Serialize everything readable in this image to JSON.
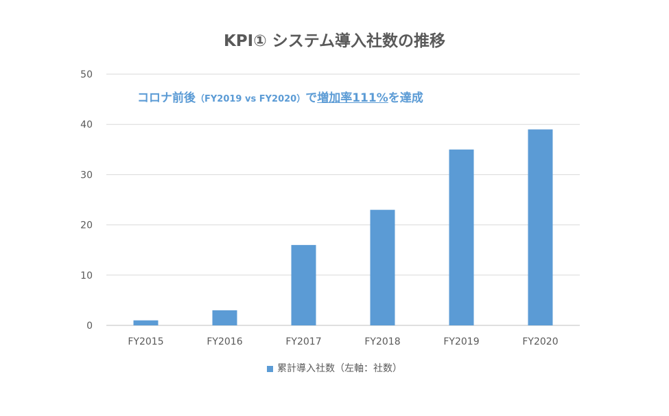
{
  "chart_data": {
    "type": "bar",
    "title": "KPI① システム導入社数の推移",
    "categories": [
      "FY2015",
      "FY2016",
      "FY2017",
      "FY2018",
      "FY2019",
      "FY2020"
    ],
    "series": [
      {
        "name": "累計導入社数（左軸：社数）",
        "values": [
          1,
          3,
          16,
          23,
          35,
          39
        ],
        "color": "#5b9bd5"
      }
    ],
    "ylim": [
      0,
      50
    ],
    "yticks": [
      0,
      10,
      20,
      30,
      40,
      50
    ],
    "grid": true,
    "legend_position": "bottom",
    "annotation": {
      "part1": "コロナ前後",
      "part2": "（FY2019 vs FY2020）",
      "part3": "で",
      "part4": "増加率111%",
      "part5": "を達成"
    }
  }
}
